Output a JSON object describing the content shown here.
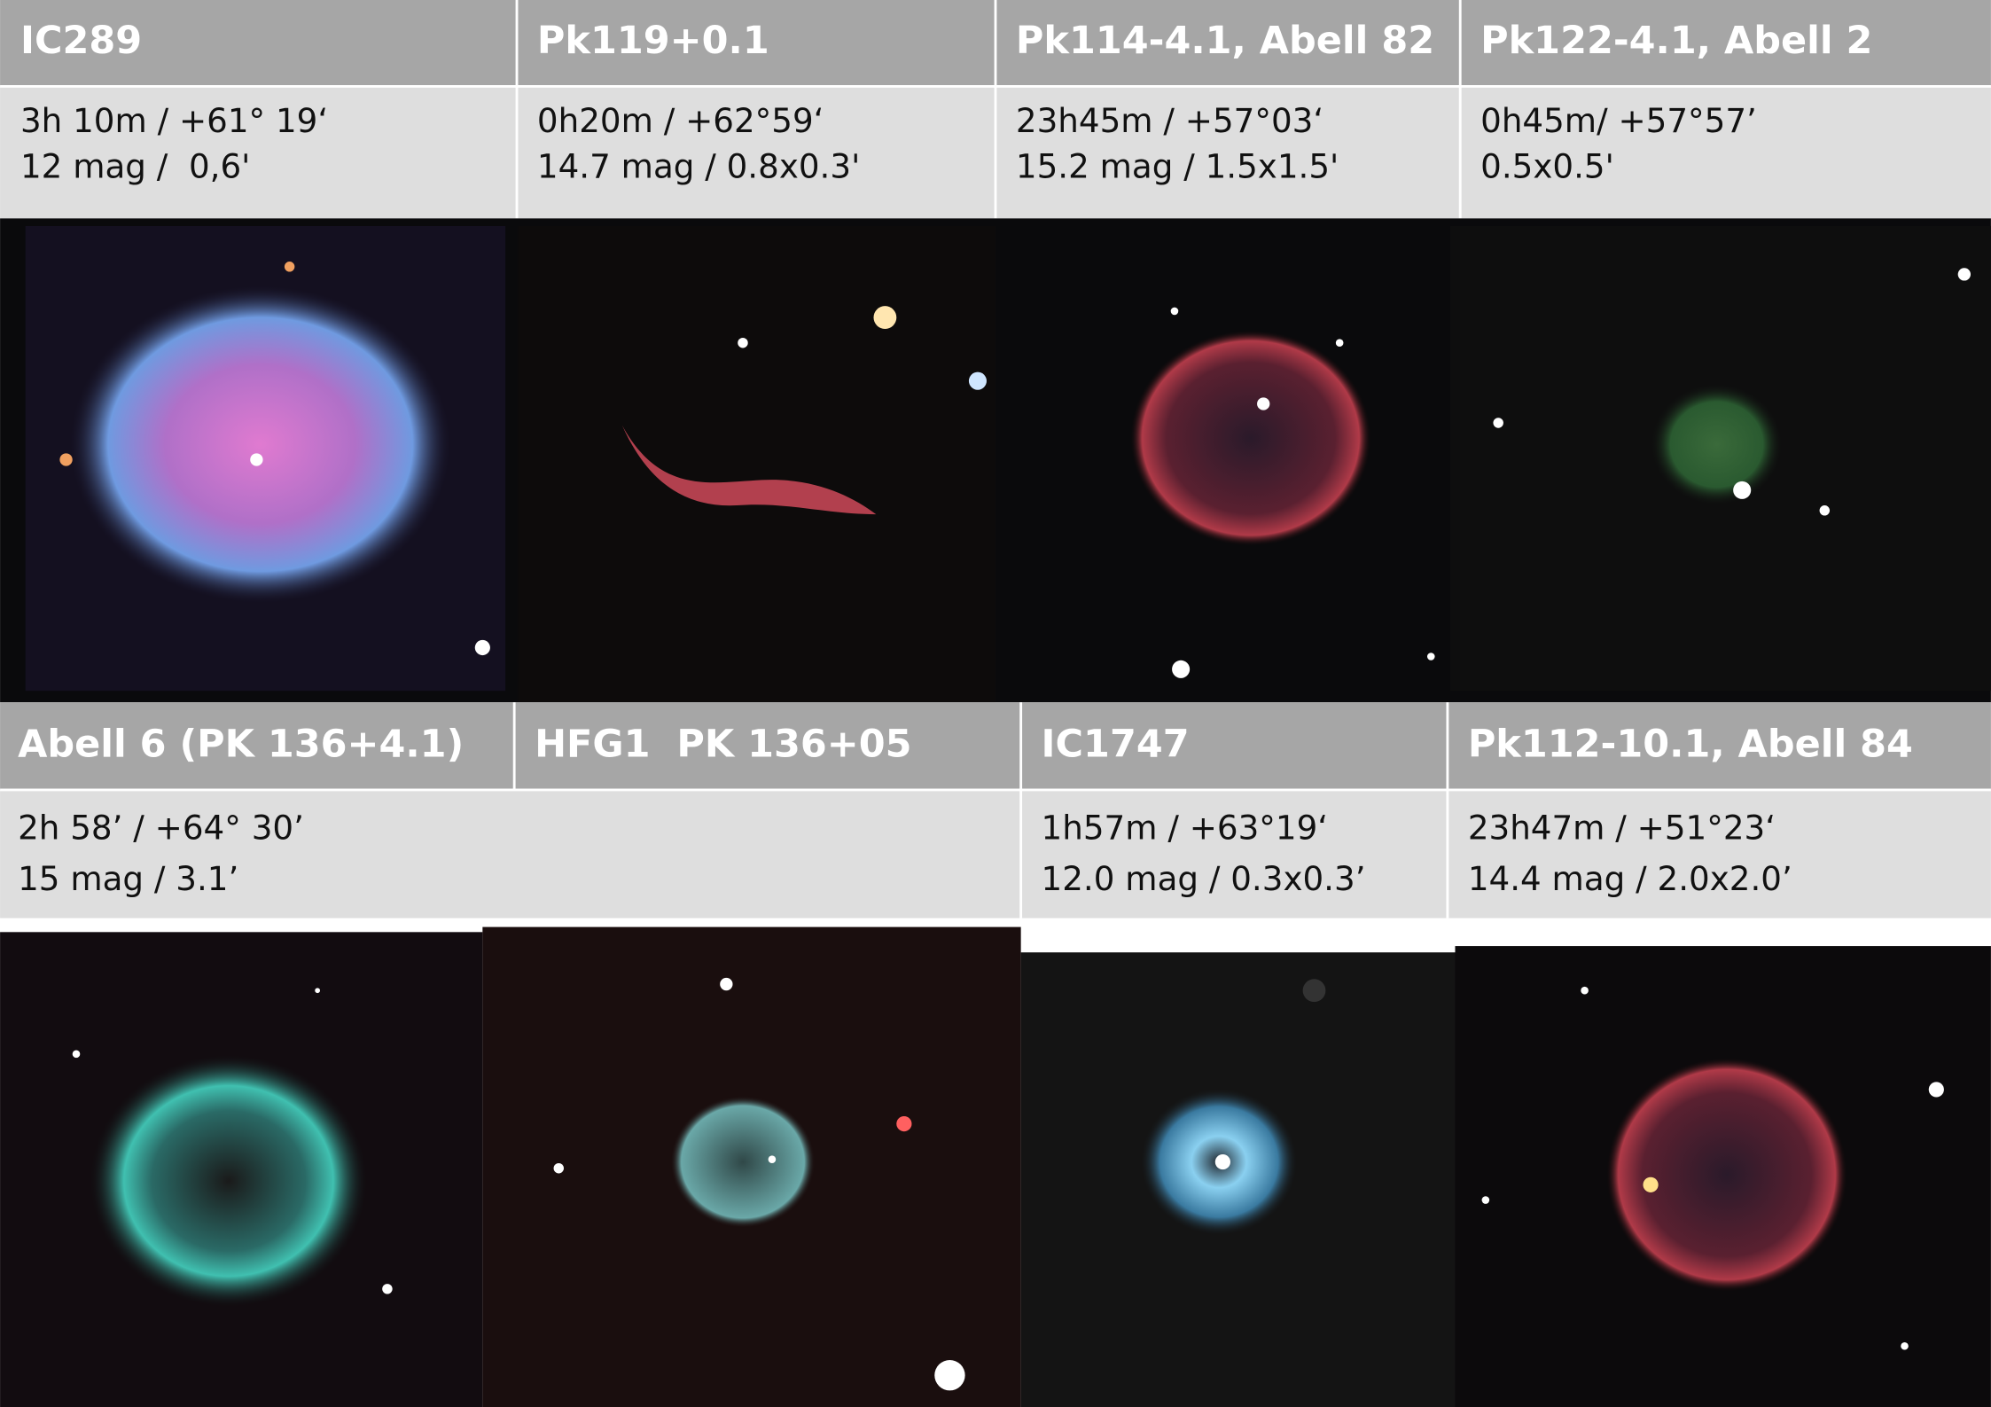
{
  "top_row": [
    {
      "title": "IC289",
      "lines": [
        "3h 10m / +61° 19‘",
        "12 mag /  0,6'"
      ]
    },
    {
      "title": "Pk119+0.1",
      "lines": [
        "0h20m / +62°59‘",
        "14.7 mag / 0.8x0.3'"
      ]
    },
    {
      "title": "Pk114-4.1, Abell 82",
      "lines": [
        "23h45m / +57°03‘",
        "15.2 mag / 1.5x1.5'"
      ]
    },
    {
      "title": "Pk122-4.1, Abell 2",
      "lines": [
        "0h45m/ +57°57’",
        "0.5x0.5'"
      ]
    }
  ],
  "bottom_row": {
    "titles": [
      "Abell 6 (PK 136+4.1)",
      "HFG1  PK 136+05",
      "IC1747",
      "Pk112-10.1, Abell 84"
    ],
    "info": [
      {
        "lines": [
          "2h 58’ / +64° 30’",
          "15 mag / 3.1’"
        ]
      },
      {
        "lines": [
          "1h57m / +63°19‘",
          "12.0 mag / 0.3x0.3’"
        ]
      },
      {
        "lines": [
          "23h47m / +51°23‘",
          "14.4 mag / 2.0x2.0’"
        ]
      }
    ]
  }
}
